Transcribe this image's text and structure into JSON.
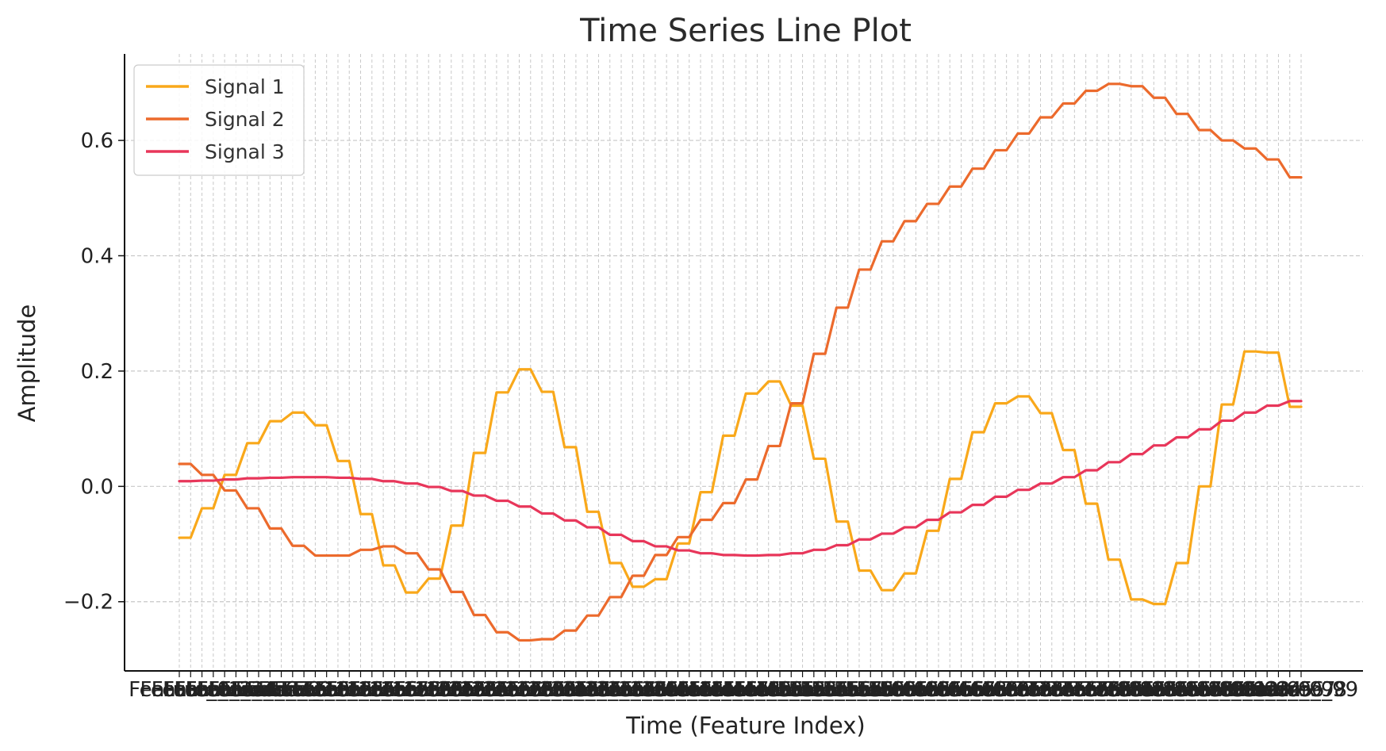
{
  "chart_data": {
    "type": "line",
    "title": "Time Series Line Plot",
    "xlabel": "Time (Feature Index)",
    "ylabel": "Amplitude",
    "ylim": [
      -0.32,
      0.75
    ],
    "yticks": [
      -0.2,
      0.0,
      0.2,
      0.4,
      0.6
    ],
    "ytick_labels": [
      "−0.2",
      "0.0",
      "0.2",
      "0.4",
      "0.6"
    ],
    "x_tick_prefix": "Feature_",
    "n_points": 100,
    "grid": true,
    "legend_position": "top-left",
    "colors": [
      "#f9a81a",
      "#ec6a2c",
      "#e8365a"
    ],
    "series": [
      {
        "name": "Signal 1",
        "values": [
          -0.089,
          -0.089,
          -0.038,
          -0.038,
          0.02,
          0.02,
          0.075,
          0.075,
          0.113,
          0.113,
          0.128,
          0.128,
          0.106,
          0.106,
          0.044,
          0.044,
          -0.048,
          -0.048,
          -0.137,
          -0.137,
          -0.184,
          -0.184,
          -0.16,
          -0.16,
          -0.068,
          -0.068,
          0.058,
          0.058,
          0.163,
          0.163,
          0.203,
          0.203,
          0.164,
          0.164,
          0.068,
          0.068,
          -0.044,
          -0.044,
          -0.133,
          -0.133,
          -0.174,
          -0.174,
          -0.161,
          -0.161,
          -0.099,
          -0.099,
          -0.01,
          -0.01,
          0.088,
          0.088,
          0.161,
          0.161,
          0.182,
          0.182,
          0.14,
          0.14,
          0.048,
          0.048,
          -0.061,
          -0.061,
          -0.146,
          -0.146,
          -0.18,
          -0.18,
          -0.151,
          -0.151,
          -0.077,
          -0.077,
          0.013,
          0.013,
          0.094,
          0.094,
          0.144,
          0.144,
          0.156,
          0.156,
          0.127,
          0.127,
          0.063,
          0.063,
          -0.03,
          -0.03,
          -0.127,
          -0.127,
          -0.196,
          -0.196,
          -0.204,
          -0.204,
          -0.133,
          -0.133,
          0.0,
          0.0,
          0.142,
          0.142,
          0.234,
          0.234,
          0.232,
          0.232,
          0.138,
          0.138
        ]
      },
      {
        "name": "Signal 2",
        "values": [
          0.039,
          0.039,
          0.02,
          0.02,
          -0.007,
          -0.007,
          -0.038,
          -0.038,
          -0.073,
          -0.073,
          -0.103,
          -0.103,
          -0.12,
          -0.12,
          -0.12,
          -0.12,
          -0.11,
          -0.11,
          -0.104,
          -0.104,
          -0.116,
          -0.116,
          -0.144,
          -0.144,
          -0.183,
          -0.183,
          -0.223,
          -0.223,
          -0.253,
          -0.253,
          -0.267,
          -0.267,
          -0.265,
          -0.265,
          -0.25,
          -0.25,
          -0.224,
          -0.224,
          -0.192,
          -0.192,
          -0.155,
          -0.155,
          -0.119,
          -0.119,
          -0.088,
          -0.088,
          -0.058,
          -0.058,
          -0.029,
          -0.029,
          0.012,
          0.012,
          0.07,
          0.07,
          0.144,
          0.144,
          0.23,
          0.23,
          0.31,
          0.31,
          0.376,
          0.376,
          0.425,
          0.425,
          0.46,
          0.46,
          0.49,
          0.49,
          0.52,
          0.52,
          0.551,
          0.551,
          0.583,
          0.583,
          0.612,
          0.612,
          0.64,
          0.64,
          0.664,
          0.664,
          0.686,
          0.686,
          0.698,
          0.698,
          0.694,
          0.694,
          0.674,
          0.674,
          0.646,
          0.646,
          0.618,
          0.618,
          0.6,
          0.6,
          0.586,
          0.586,
          0.567,
          0.567,
          0.536,
          0.536
        ]
      },
      {
        "name": "Signal 3",
        "values": [
          0.009,
          0.009,
          0.01,
          0.01,
          0.012,
          0.012,
          0.014,
          0.014,
          0.015,
          0.015,
          0.016,
          0.016,
          0.016,
          0.016,
          0.015,
          0.015,
          0.013,
          0.013,
          0.009,
          0.009,
          0.005,
          0.005,
          -0.001,
          -0.001,
          -0.008,
          -0.008,
          -0.016,
          -0.016,
          -0.025,
          -0.025,
          -0.035,
          -0.035,
          -0.047,
          -0.047,
          -0.059,
          -0.059,
          -0.071,
          -0.071,
          -0.084,
          -0.084,
          -0.095,
          -0.095,
          -0.104,
          -0.104,
          -0.111,
          -0.111,
          -0.116,
          -0.116,
          -0.119,
          -0.119,
          -0.12,
          -0.12,
          -0.119,
          -0.119,
          -0.116,
          -0.116,
          -0.11,
          -0.11,
          -0.102,
          -0.102,
          -0.092,
          -0.092,
          -0.082,
          -0.082,
          -0.071,
          -0.071,
          -0.058,
          -0.058,
          -0.045,
          -0.045,
          -0.032,
          -0.032,
          -0.018,
          -0.018,
          -0.006,
          -0.006,
          0.005,
          0.005,
          0.016,
          0.016,
          0.028,
          0.028,
          0.042,
          0.042,
          0.056,
          0.056,
          0.071,
          0.071,
          0.085,
          0.085,
          0.099,
          0.099,
          0.114,
          0.114,
          0.128,
          0.128,
          0.14,
          0.14,
          0.148,
          0.148
        ]
      }
    ]
  }
}
